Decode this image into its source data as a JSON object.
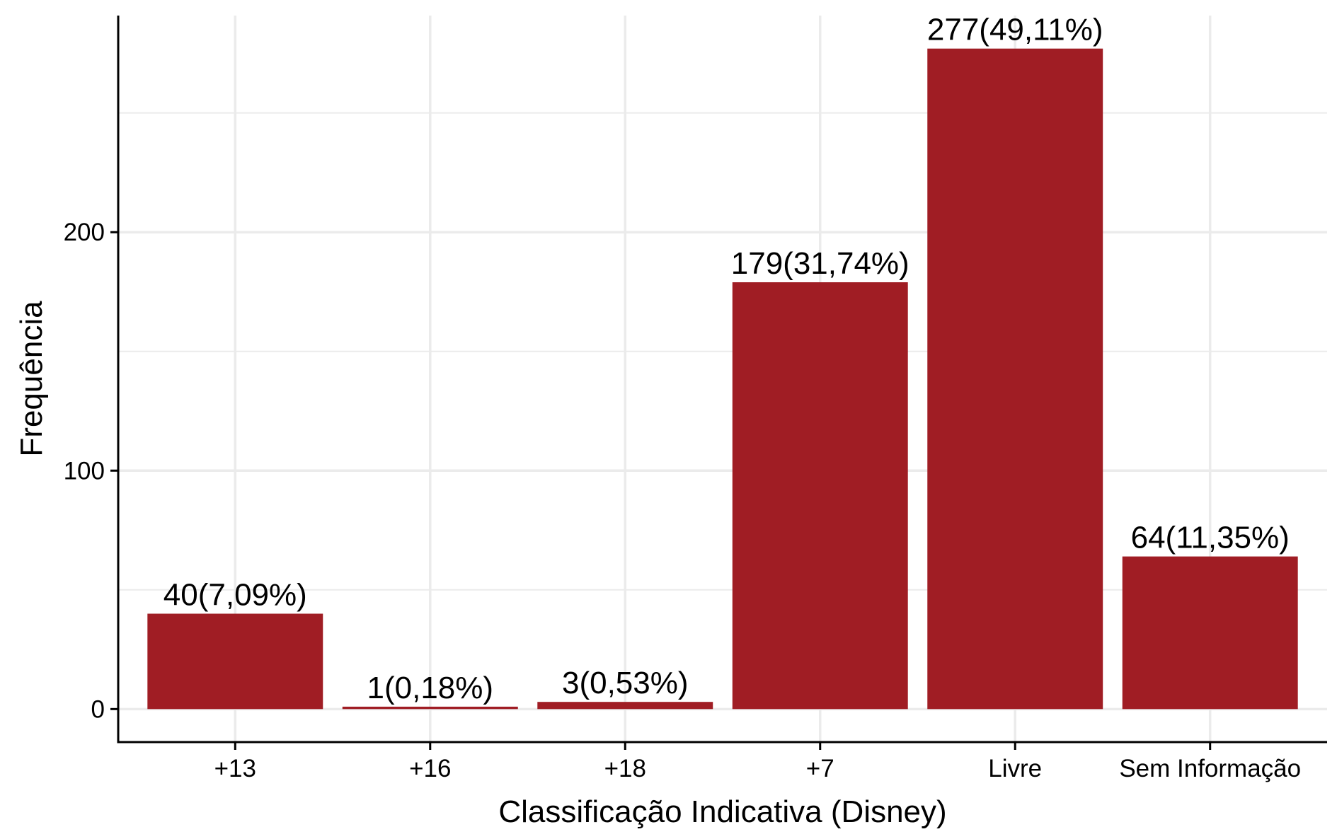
{
  "chart_data": {
    "type": "bar",
    "title": "",
    "xlabel": "Classificação Indicativa (Disney)",
    "ylabel": "Frequência",
    "categories": [
      "+13",
      "+16",
      "+18",
      "+7",
      "Livre",
      "Sem Informação"
    ],
    "values": [
      40,
      1,
      3,
      179,
      277,
      64
    ],
    "data_labels": [
      "40(7,09%)",
      "1(0,18%)",
      "3(0,53%)",
      "179(31,74%)",
      "277(49,11%)",
      "64(11,35%)"
    ],
    "yticks": [
      0,
      100,
      200
    ],
    "yticklabels": [
      "0",
      "100",
      "200"
    ],
    "ylim": [
      -13.85,
      290.85
    ],
    "grid": true,
    "legend": "none",
    "colors": {
      "bar": "#A01D24",
      "grid": "#EBEBEB",
      "axis": "#000000",
      "text": "#000000"
    }
  }
}
